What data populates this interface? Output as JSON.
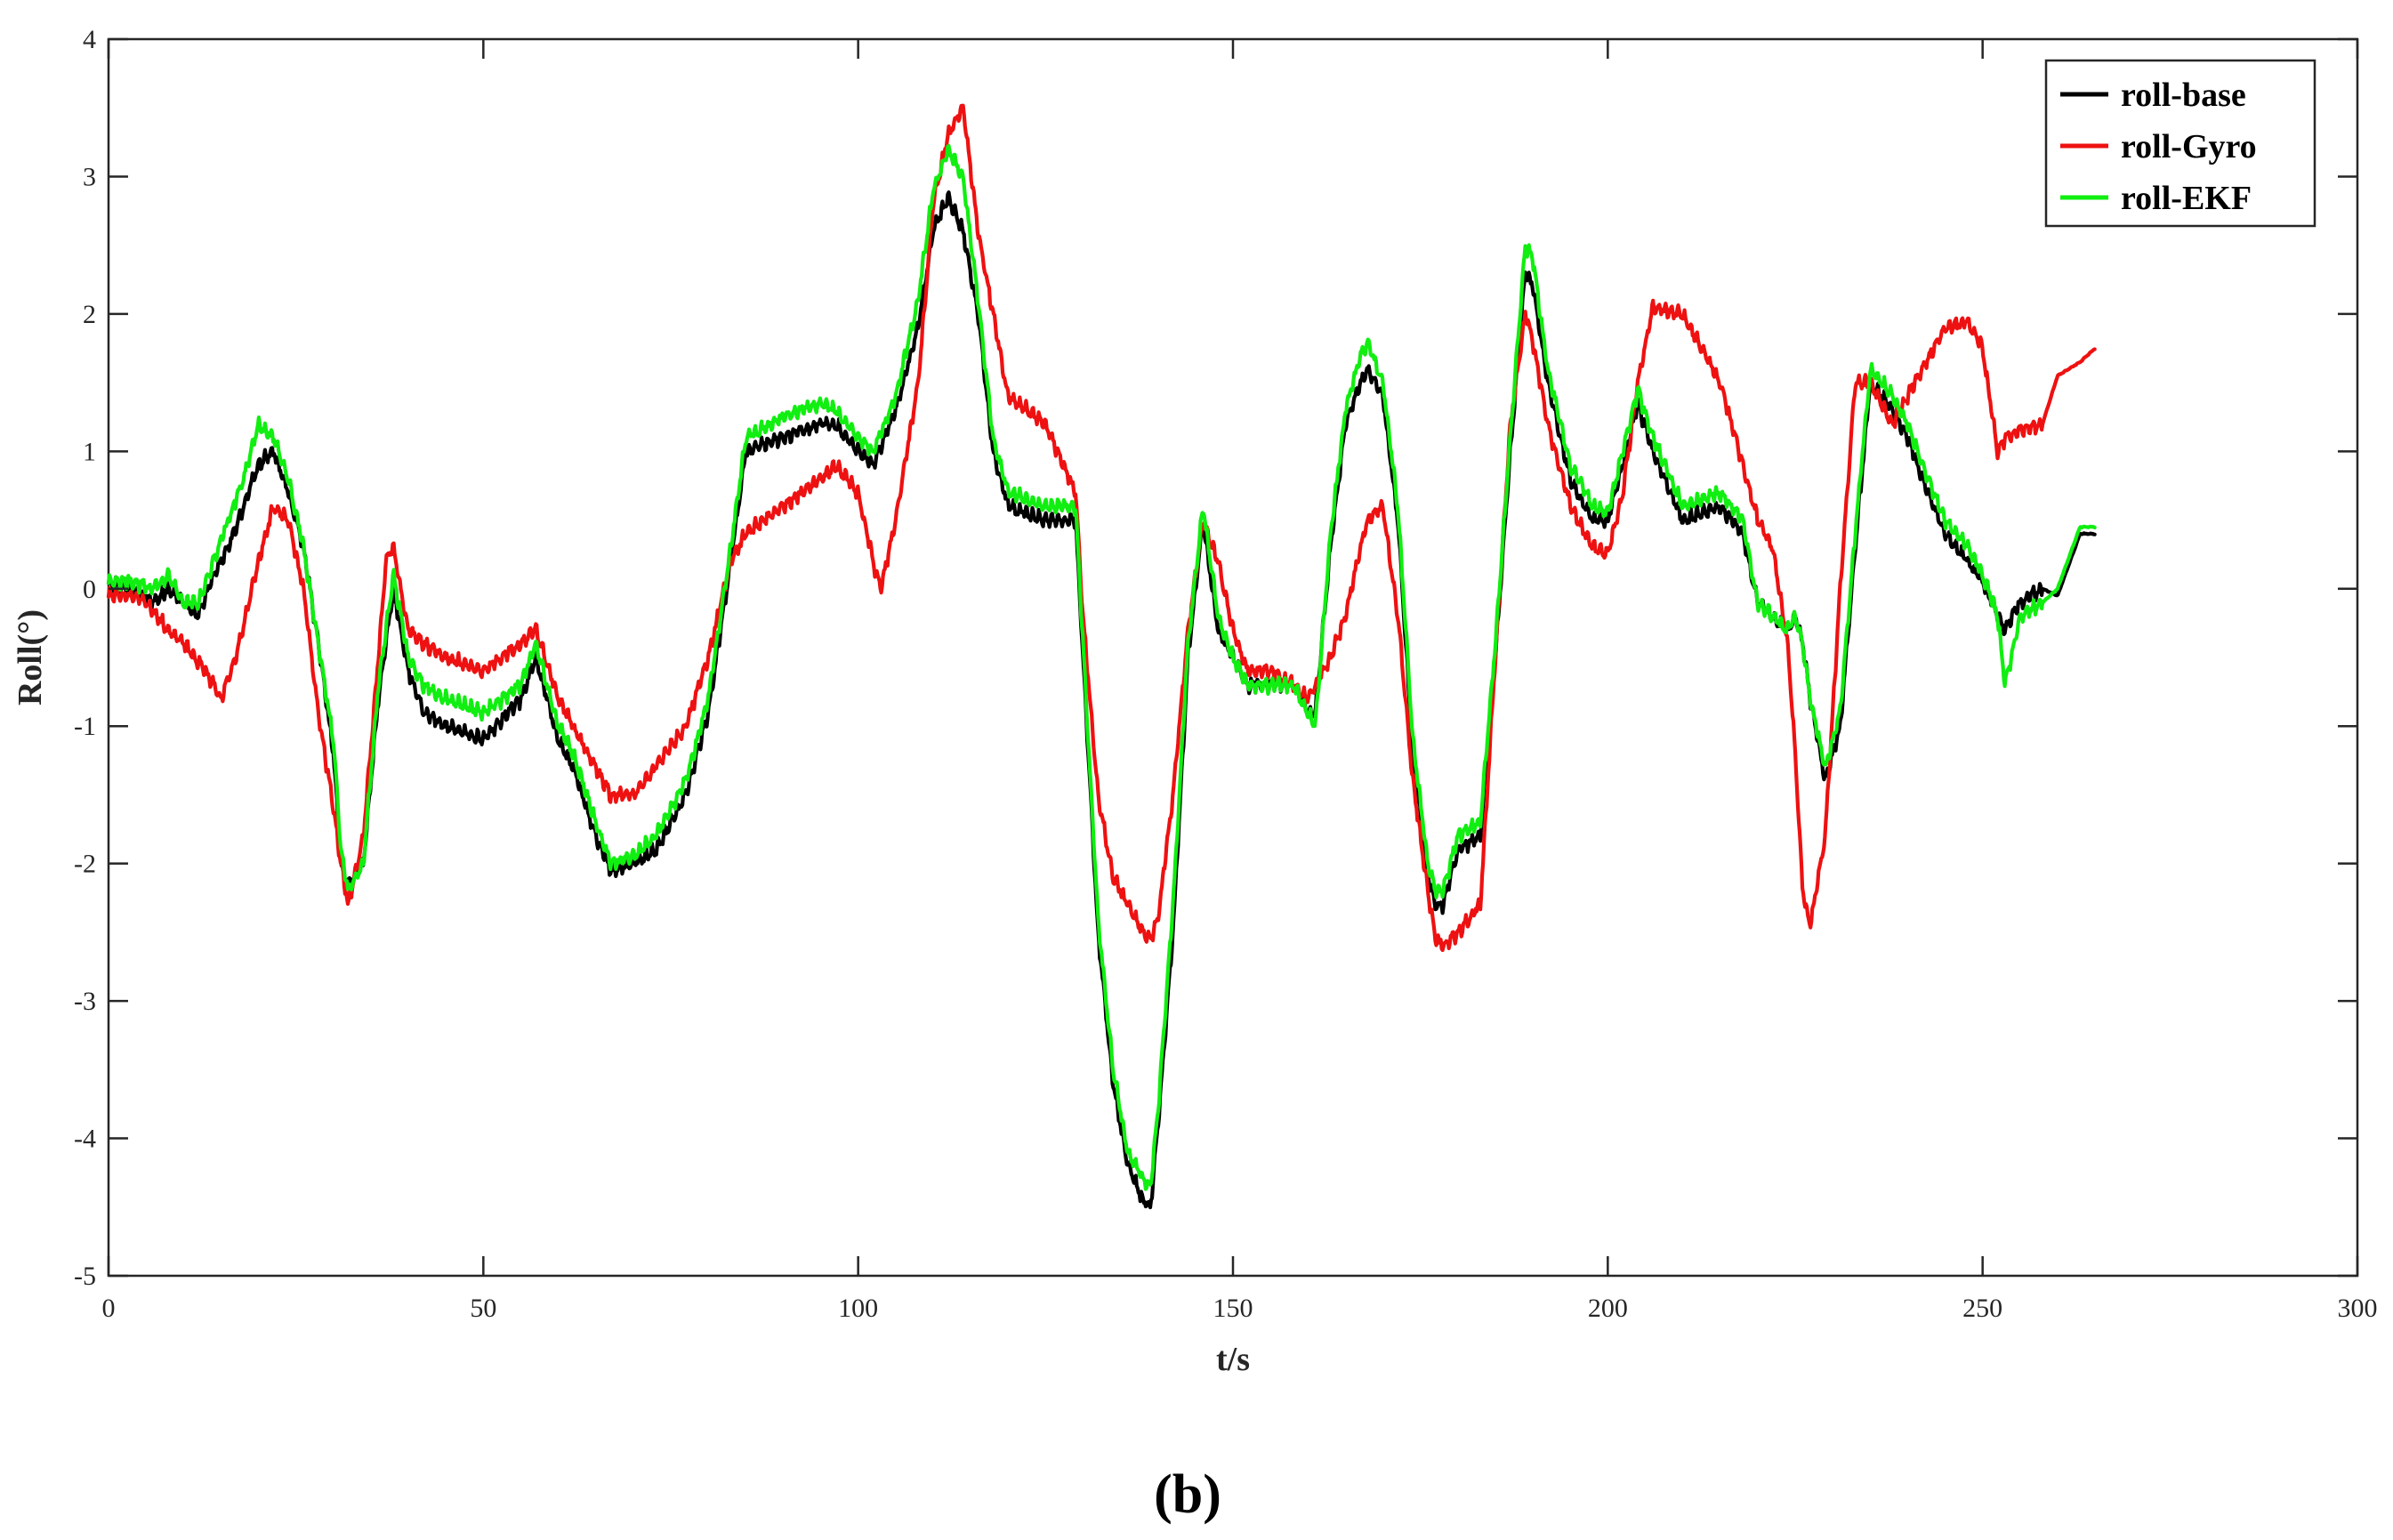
{
  "chart_data": {
    "type": "line",
    "title": "",
    "xlabel": "t/s",
    "ylabel": "Roll(°)",
    "xlim": [
      0,
      300
    ],
    "ylim": [
      -5,
      4
    ],
    "xticks": [
      0,
      50,
      100,
      150,
      200,
      250,
      300
    ],
    "yticks": [
      -5,
      -4,
      -3,
      -2,
      -1,
      0,
      1,
      2,
      3,
      4
    ],
    "grid": false,
    "legend_position": "top-right",
    "caption": "(b)",
    "series": [
      {
        "name": "roll-base",
        "color": "#000000",
        "x": [
          0,
          3,
          6,
          8,
          10,
          12,
          14,
          16,
          18,
          20,
          22,
          24,
          26,
          28,
          30,
          31,
          32,
          34,
          36,
          38,
          40,
          42,
          45,
          50,
          55,
          57,
          60,
          62,
          65,
          67,
          70,
          73,
          77,
          80,
          83,
          85,
          90,
          95,
          97,
          100,
          102,
          105,
          108,
          110,
          112,
          114,
          116,
          118,
          120,
          125,
          129,
          130,
          132,
          134,
          136,
          138,
          139,
          140,
          142,
          144,
          146,
          148,
          150,
          152,
          155,
          158,
          160,
          161,
          163,
          165,
          167,
          168,
          170,
          172,
          174,
          176,
          177,
          178,
          180,
          183,
          185,
          187,
          189,
          190,
          192,
          195,
          198,
          200,
          202,
          204,
          206,
          210,
          215,
          218,
          220,
          222,
          224,
          225,
          226,
          227,
          229,
          231,
          233,
          235,
          238,
          240,
          242,
          245,
          248,
          250,
          252,
          253,
          255,
          258,
          260,
          263,
          265
        ],
        "y": [
          0.05,
          0.0,
          -0.1,
          0.0,
          -0.1,
          -0.2,
          0.1,
          0.3,
          0.6,
          0.9,
          1.0,
          0.7,
          0.3,
          -0.4,
          -1.2,
          -2.0,
          -2.15,
          -2.0,
          -0.8,
          0.0,
          -0.6,
          -0.9,
          -1.0,
          -1.1,
          -0.8,
          -0.5,
          -1.1,
          -1.3,
          -1.8,
          -2.05,
          -2.0,
          -1.9,
          -1.5,
          -0.9,
          0.2,
          1.0,
          1.1,
          1.2,
          1.2,
          1.0,
          0.9,
          1.3,
          1.9,
          2.6,
          2.85,
          2.6,
          2.0,
          1.0,
          0.6,
          0.5,
          0.5,
          -0.5,
          -2.5,
          -3.6,
          -4.2,
          -4.45,
          -4.5,
          -3.9,
          -2.5,
          -0.5,
          0.5,
          -0.3,
          -0.5,
          -0.7,
          -0.7,
          -0.7,
          -0.9,
          -0.9,
          0.3,
          1.2,
          1.5,
          1.6,
          1.4,
          0.5,
          -1.2,
          -2.1,
          -2.3,
          -2.3,
          -1.9,
          -1.8,
          -0.5,
          1.0,
          2.3,
          2.2,
          1.5,
          0.8,
          0.5,
          0.5,
          0.9,
          1.35,
          1.0,
          0.5,
          0.6,
          0.4,
          -0.1,
          -0.2,
          -0.3,
          -0.2,
          -0.4,
          -0.8,
          -1.4,
          -1.0,
          0.3,
          1.5,
          1.3,
          1.1,
          0.8,
          0.4,
          0.2,
          0.05,
          -0.2,
          -0.3,
          -0.1,
          0.0,
          -0.05,
          0.4,
          0.4
        ]
      },
      {
        "name": "roll-Gyro",
        "color": "#ee1111",
        "x": [
          0,
          3,
          5,
          8,
          10,
          13,
          15,
          17,
          20,
          22,
          24,
          26,
          28,
          30,
          31,
          32,
          34,
          36,
          37,
          38,
          40,
          42,
          45,
          50,
          55,
          57,
          60,
          62,
          65,
          67,
          70,
          73,
          77,
          80,
          83,
          85,
          90,
          95,
          97,
          100,
          102,
          103,
          105,
          108,
          110,
          112,
          113,
          114,
          116,
          118,
          120,
          125,
          129,
          130,
          132,
          134,
          136,
          138,
          139,
          140,
          142,
          144,
          146,
          148,
          150,
          152,
          155,
          158,
          160,
          161,
          163,
          165,
          167,
          168,
          170,
          172,
          174,
          176,
          177,
          178,
          180,
          183,
          185,
          187,
          189,
          190,
          192,
          195,
          198,
          200,
          202,
          204,
          206,
          210,
          215,
          218,
          220,
          222,
          224,
          225,
          226,
          227,
          229,
          231,
          233,
          235,
          238,
          240,
          242,
          245,
          248,
          250,
          252,
          253,
          255,
          258,
          260,
          263,
          265
        ],
        "y": [
          -0.05,
          -0.05,
          -0.1,
          -0.3,
          -0.4,
          -0.6,
          -0.8,
          -0.5,
          0.2,
          0.6,
          0.5,
          0.0,
          -0.9,
          -1.6,
          -2.0,
          -2.3,
          -1.8,
          -0.5,
          0.2,
          0.3,
          -0.3,
          -0.4,
          -0.5,
          -0.6,
          -0.4,
          -0.3,
          -0.8,
          -1.0,
          -1.3,
          -1.5,
          -1.5,
          -1.3,
          -1.0,
          -0.5,
          0.2,
          0.4,
          0.6,
          0.8,
          0.9,
          0.7,
          0.2,
          0.0,
          0.5,
          1.5,
          2.8,
          3.3,
          3.4,
          3.5,
          2.6,
          2.0,
          1.4,
          1.2,
          0.7,
          -0.2,
          -1.5,
          -2.1,
          -2.3,
          -2.5,
          -2.55,
          -2.4,
          -1.5,
          -0.3,
          0.5,
          0.2,
          -0.3,
          -0.6,
          -0.6,
          -0.7,
          -0.8,
          -0.7,
          -0.5,
          -0.2,
          0.3,
          0.5,
          0.6,
          -0.2,
          -1.4,
          -2.2,
          -2.55,
          -2.6,
          -2.5,
          -2.3,
          -0.5,
          1.2,
          2.0,
          1.8,
          1.2,
          0.6,
          0.3,
          0.25,
          0.7,
          1.5,
          2.05,
          2.0,
          1.5,
          0.9,
          0.5,
          0.3,
          -0.4,
          -1.2,
          -2.2,
          -2.45,
          -1.8,
          0.0,
          1.5,
          1.5,
          1.2,
          1.4,
          1.6,
          1.9,
          1.95,
          1.75,
          1.0,
          1.1,
          1.15,
          1.2,
          1.55,
          1.65,
          1.75
        ]
      },
      {
        "name": "roll-EKF",
        "color": "#11ee11",
        "x": [
          0,
          3,
          6,
          8,
          10,
          12,
          14,
          16,
          18,
          20,
          22,
          24,
          26,
          28,
          30,
          31,
          32,
          34,
          36,
          38,
          40,
          42,
          45,
          50,
          55,
          57,
          60,
          62,
          65,
          67,
          70,
          73,
          77,
          80,
          83,
          85,
          90,
          95,
          97,
          100,
          102,
          105,
          108,
          110,
          112,
          114,
          116,
          118,
          120,
          125,
          129,
          130,
          132,
          134,
          136,
          138,
          139,
          140,
          142,
          144,
          146,
          148,
          150,
          152,
          155,
          158,
          160,
          161,
          163,
          165,
          167,
          168,
          170,
          172,
          174,
          176,
          177,
          178,
          180,
          183,
          185,
          187,
          189,
          190,
          192,
          195,
          198,
          200,
          202,
          204,
          206,
          210,
          215,
          218,
          220,
          222,
          224,
          225,
          226,
          227,
          229,
          231,
          233,
          235,
          238,
          240,
          242,
          245,
          248,
          250,
          252,
          253,
          255,
          258,
          260,
          263,
          265
        ],
        "y": [
          0.05,
          0.05,
          0.0,
          0.1,
          -0.1,
          -0.1,
          0.2,
          0.5,
          0.8,
          1.2,
          1.1,
          0.8,
          0.3,
          -0.4,
          -1.1,
          -1.9,
          -2.2,
          -2.0,
          -0.7,
          0.1,
          -0.5,
          -0.7,
          -0.8,
          -0.9,
          -0.7,
          -0.4,
          -1.0,
          -1.2,
          -1.7,
          -2.0,
          -1.95,
          -1.8,
          -1.4,
          -0.8,
          0.3,
          1.1,
          1.25,
          1.35,
          1.3,
          1.1,
          1.0,
          1.4,
          2.1,
          2.9,
          3.2,
          3.0,
          2.1,
          1.1,
          0.7,
          0.6,
          0.6,
          -0.4,
          -2.4,
          -3.5,
          -4.1,
          -4.3,
          -4.35,
          -3.8,
          -2.3,
          -0.4,
          0.6,
          -0.2,
          -0.5,
          -0.7,
          -0.7,
          -0.7,
          -0.9,
          -1.0,
          0.4,
          1.3,
          1.7,
          1.8,
          1.5,
          0.6,
          -1.1,
          -2.0,
          -2.2,
          -2.2,
          -1.8,
          -1.7,
          -0.4,
          1.1,
          2.5,
          2.4,
          1.6,
          0.9,
          0.6,
          0.55,
          1.0,
          1.45,
          1.1,
          0.6,
          0.7,
          0.5,
          -0.1,
          -0.2,
          -0.3,
          -0.2,
          -0.4,
          -0.8,
          -1.3,
          -0.9,
          0.4,
          1.6,
          1.4,
          1.2,
          0.9,
          0.5,
          0.3,
          0.1,
          -0.2,
          -0.7,
          -0.2,
          -0.1,
          0.0,
          0.45,
          0.45
        ]
      }
    ]
  }
}
